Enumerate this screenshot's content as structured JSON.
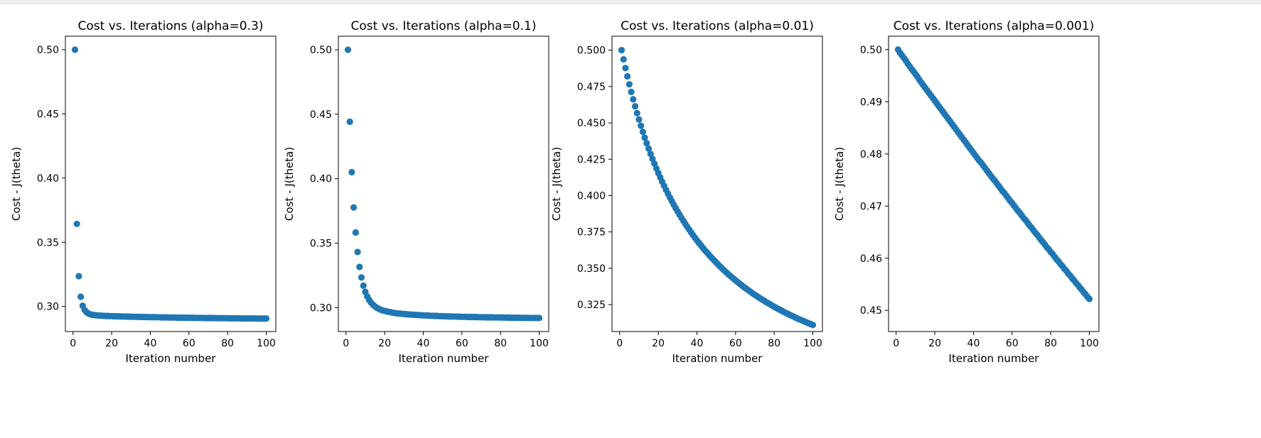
{
  "chart_data": [
    {
      "type": "scatter",
      "title": "Cost vs. Iterations (alpha=0.3)",
      "xlabel": "Iteration number",
      "ylabel": "Cost - J(theta)",
      "xlim": [
        -3.95,
        104.95
      ],
      "ylim": [
        0.2805,
        0.5105
      ],
      "xticks": [
        0,
        20,
        40,
        60,
        80,
        100
      ],
      "xtick_labels": [
        "0",
        "20",
        "40",
        "60",
        "80",
        "100"
      ],
      "yticks": [
        0.3,
        0.35,
        0.4,
        0.45,
        0.5
      ],
      "ytick_labels": [
        "0.30",
        "0.35",
        "0.40",
        "0.45",
        "0.50"
      ],
      "marker_color": "#1f77b4",
      "series": [
        {
          "x": [
            1,
            2,
            3,
            4,
            5,
            6,
            7,
            8,
            9,
            10,
            11,
            12,
            13,
            14,
            15,
            16,
            17,
            18,
            19,
            20,
            21,
            22,
            23,
            24,
            25,
            26,
            27,
            28,
            29,
            30,
            31,
            32,
            33,
            34,
            35,
            36,
            37,
            38,
            39,
            40,
            41,
            42,
            43,
            44,
            45,
            46,
            47,
            48,
            49,
            50,
            51,
            52,
            53,
            54,
            55,
            56,
            57,
            58,
            59,
            60,
            61,
            62,
            63,
            64,
            65,
            66,
            67,
            68,
            69,
            70,
            71,
            72,
            73,
            74,
            75,
            76,
            77,
            78,
            79,
            80,
            81,
            82,
            83,
            84,
            85,
            86,
            87,
            88,
            89,
            90,
            91,
            92,
            93,
            94,
            95,
            96,
            97,
            98,
            99,
            100
          ],
          "y": [
            0.5,
            0.3643,
            0.3236,
            0.3076,
            0.3006,
            0.2973,
            0.2955,
            0.2945,
            0.2939,
            0.2935,
            0.2933,
            0.2931,
            0.293,
            0.2929,
            0.2928,
            0.2927,
            0.2926,
            0.2926,
            0.2925,
            0.2925,
            0.2924,
            0.2924,
            0.2923,
            0.2923,
            0.2922,
            0.2922,
            0.2922,
            0.2921,
            0.2921,
            0.292,
            0.292,
            0.292,
            0.2919,
            0.2919,
            0.2919,
            0.2918,
            0.2918,
            0.2918,
            0.2917,
            0.2917,
            0.2917,
            0.2917,
            0.2916,
            0.2916,
            0.2916,
            0.2915,
            0.2915,
            0.2915,
            0.2915,
            0.2914,
            0.2914,
            0.2914,
            0.2914,
            0.2913,
            0.2913,
            0.2913,
            0.2913,
            0.2913,
            0.2912,
            0.2912,
            0.2912,
            0.2912,
            0.2911,
            0.2911,
            0.2911,
            0.2911,
            0.2911,
            0.291,
            0.291,
            0.291,
            0.291,
            0.291,
            0.291,
            0.2909,
            0.2909,
            0.2909,
            0.2909,
            0.2909,
            0.2909,
            0.2908,
            0.2908,
            0.2908,
            0.2908,
            0.2908,
            0.2908,
            0.2908,
            0.2907,
            0.2907,
            0.2907,
            0.2907,
            0.2907,
            0.2907,
            0.2907,
            0.2907,
            0.2906,
            0.2906,
            0.2906,
            0.2906,
            0.2906,
            0.2906
          ]
        }
      ]
    },
    {
      "type": "scatter",
      "title": "Cost vs. Iterations (alpha=0.1)",
      "xlabel": "Iteration number",
      "ylabel": "Cost - J(theta)",
      "xlim": [
        -3.95,
        104.95
      ],
      "ylim": [
        0.2815,
        0.5105
      ],
      "xticks": [
        0,
        20,
        40,
        60,
        80,
        100
      ],
      "xtick_labels": [
        "0",
        "20",
        "40",
        "60",
        "80",
        "100"
      ],
      "yticks": [
        0.3,
        0.35,
        0.4,
        0.45,
        0.5
      ],
      "ytick_labels": [
        "0.30",
        "0.35",
        "0.40",
        "0.45",
        "0.50"
      ],
      "marker_color": "#1f77b4",
      "series": [
        {
          "x": [
            1,
            2,
            3,
            4,
            5,
            6,
            7,
            8,
            9,
            10,
            11,
            12,
            13,
            14,
            15,
            16,
            17,
            18,
            19,
            20,
            21,
            22,
            23,
            24,
            25,
            26,
            27,
            28,
            29,
            30,
            31,
            32,
            33,
            34,
            35,
            36,
            37,
            38,
            39,
            40,
            41,
            42,
            43,
            44,
            45,
            46,
            47,
            48,
            49,
            50,
            51,
            52,
            53,
            54,
            55,
            56,
            57,
            58,
            59,
            60,
            61,
            62,
            63,
            64,
            65,
            66,
            67,
            68,
            69,
            70,
            71,
            72,
            73,
            74,
            75,
            76,
            77,
            78,
            79,
            80,
            81,
            82,
            83,
            84,
            85,
            86,
            87,
            88,
            89,
            90,
            91,
            92,
            93,
            94,
            95,
            96,
            97,
            98,
            99,
            100
          ],
          "y": [
            0.5,
            0.4442,
            0.4051,
            0.3777,
            0.3583,
            0.3432,
            0.3316,
            0.3234,
            0.3171,
            0.3123,
            0.3087,
            0.306,
            0.3039,
            0.3022,
            0.3009,
            0.2999,
            0.2991,
            0.2984,
            0.2979,
            0.2975,
            0.2971,
            0.2968,
            0.2965,
            0.2962,
            0.2959,
            0.2957,
            0.2955,
            0.2954,
            0.2952,
            0.2951,
            0.2949,
            0.2948,
            0.2947,
            0.2946,
            0.2945,
            0.2944,
            0.2943,
            0.2942,
            0.2941,
            0.294,
            0.294,
            0.2939,
            0.2938,
            0.2937,
            0.2937,
            0.2936,
            0.2936,
            0.2935,
            0.2934,
            0.2934,
            0.2933,
            0.2933,
            0.2932,
            0.2932,
            0.2931,
            0.2931,
            0.2931,
            0.293,
            0.293,
            0.2929,
            0.2929,
            0.2929,
            0.2928,
            0.2928,
            0.2928,
            0.2927,
            0.2927,
            0.2927,
            0.2926,
            0.2926,
            0.2926,
            0.2926,
            0.2925,
            0.2925,
            0.2925,
            0.2925,
            0.2924,
            0.2924,
            0.2924,
            0.2924,
            0.2923,
            0.2923,
            0.2923,
            0.2923,
            0.2922,
            0.2922,
            0.2922,
            0.2922,
            0.2922,
            0.2921,
            0.2921,
            0.2921,
            0.2921,
            0.2921,
            0.292,
            0.292,
            0.292,
            0.292,
            0.292,
            0.292
          ]
        }
      ]
    },
    {
      "type": "scatter",
      "title": "Cost vs. Iterations (alpha=0.01)",
      "xlabel": "Iteration number",
      "ylabel": "Cost - J(theta)",
      "xlim": [
        -3.95,
        104.95
      ],
      "ylim": [
        0.3065,
        0.5096
      ],
      "xticks": [
        0,
        20,
        40,
        60,
        80,
        100
      ],
      "xtick_labels": [
        "0",
        "20",
        "40",
        "60",
        "80",
        "100"
      ],
      "yticks": [
        0.325,
        0.35,
        0.375,
        0.4,
        0.425,
        0.45,
        0.475,
        0.5
      ],
      "ytick_labels": [
        "0.325",
        "0.350",
        "0.375",
        "0.400",
        "0.425",
        "0.450",
        "0.475",
        "0.500"
      ],
      "marker_color": "#1f77b4",
      "series": [
        {
          "x": [
            1,
            2,
            3,
            4,
            5,
            6,
            7,
            8,
            9,
            10,
            11,
            12,
            13,
            14,
            15,
            16,
            17,
            18,
            19,
            20,
            21,
            22,
            23,
            24,
            25,
            26,
            27,
            28,
            29,
            30,
            31,
            32,
            33,
            34,
            35,
            36,
            37,
            38,
            39,
            40,
            41,
            42,
            43,
            44,
            45,
            46,
            47,
            48,
            49,
            50,
            51,
            52,
            53,
            54,
            55,
            56,
            57,
            58,
            59,
            60,
            61,
            62,
            63,
            64,
            65,
            66,
            67,
            68,
            69,
            70,
            71,
            72,
            73,
            74,
            75,
            76,
            77,
            78,
            79,
            80,
            81,
            82,
            83,
            84,
            85,
            86,
            87,
            88,
            89,
            90,
            91,
            92,
            93,
            94,
            95,
            96,
            97,
            98,
            99,
            100
          ],
          "y": [
            0.5,
            0.4937,
            0.4877,
            0.482,
            0.4765,
            0.4713,
            0.4662,
            0.4614,
            0.4567,
            0.4523,
            0.448,
            0.4438,
            0.4398,
            0.436,
            0.4323,
            0.4287,
            0.4252,
            0.4219,
            0.4186,
            0.4155,
            0.4125,
            0.4095,
            0.4067,
            0.4039,
            0.4013,
            0.3987,
            0.3962,
            0.3937,
            0.3914,
            0.3891,
            0.3868,
            0.3847,
            0.3826,
            0.3805,
            0.3785,
            0.3766,
            0.3747,
            0.3728,
            0.371,
            0.3692,
            0.3675,
            0.3659,
            0.3642,
            0.3626,
            0.3611,
            0.3596,
            0.3581,
            0.3567,
            0.3553,
            0.3539,
            0.3525,
            0.3512,
            0.3499,
            0.3487,
            0.3474,
            0.3462,
            0.345,
            0.3439,
            0.3428,
            0.3416,
            0.3406,
            0.3395,
            0.3385,
            0.3374,
            0.3364,
            0.3355,
            0.3345,
            0.3336,
            0.3326,
            0.3317,
            0.3308,
            0.33,
            0.3291,
            0.3283,
            0.3275,
            0.3266,
            0.3259,
            0.3251,
            0.3243,
            0.3236,
            0.3228,
            0.3221,
            0.3214,
            0.3207,
            0.32,
            0.3193,
            0.3187,
            0.318,
            0.3174,
            0.3168,
            0.3161,
            0.3155,
            0.3149,
            0.3144,
            0.3138,
            0.3132,
            0.3126,
            0.3121,
            0.3116,
            0.311
          ]
        }
      ]
    },
    {
      "type": "scatter",
      "title": "Cost vs. Iterations (alpha=0.001)",
      "xlabel": "Iteration number",
      "ylabel": "Cost - J(theta)",
      "xlim": [
        -3.95,
        104.95
      ],
      "ylim": [
        0.44595,
        0.50257
      ],
      "xticks": [
        0,
        20,
        40,
        60,
        80,
        100
      ],
      "xtick_labels": [
        "0",
        "20",
        "40",
        "60",
        "80",
        "100"
      ],
      "yticks": [
        0.45,
        0.46,
        0.47,
        0.48,
        0.49,
        0.5
      ],
      "ytick_labels": [
        "0.45",
        "0.46",
        "0.47",
        "0.48",
        "0.49",
        "0.50"
      ],
      "marker_color": "#1f77b4",
      "series": [
        {
          "x": [
            1,
            2,
            3,
            4,
            5,
            6,
            7,
            8,
            9,
            10,
            11,
            12,
            13,
            14,
            15,
            16,
            17,
            18,
            19,
            20,
            21,
            22,
            23,
            24,
            25,
            26,
            27,
            28,
            29,
            30,
            31,
            32,
            33,
            34,
            35,
            36,
            37,
            38,
            39,
            40,
            41,
            42,
            43,
            44,
            45,
            46,
            47,
            48,
            49,
            50,
            51,
            52,
            53,
            54,
            55,
            56,
            57,
            58,
            59,
            60,
            61,
            62,
            63,
            64,
            65,
            66,
            67,
            68,
            69,
            70,
            71,
            72,
            73,
            74,
            75,
            76,
            77,
            78,
            79,
            80,
            81,
            82,
            83,
            84,
            85,
            86,
            87,
            88,
            89,
            90,
            91,
            92,
            93,
            94,
            95,
            96,
            97,
            98,
            99,
            100
          ],
          "y": [
            0.5,
            0.4994,
            0.4989,
            0.4984,
            0.4979,
            0.4973,
            0.4968,
            0.4963,
            0.4958,
            0.4953,
            0.4948,
            0.4942,
            0.4937,
            0.4932,
            0.4927,
            0.4922,
            0.4917,
            0.4912,
            0.4907,
            0.4902,
            0.4897,
            0.4892,
            0.4887,
            0.4882,
            0.4877,
            0.4872,
            0.4867,
            0.4862,
            0.4857,
            0.4852,
            0.4847,
            0.4842,
            0.4837,
            0.4832,
            0.4827,
            0.4822,
            0.4817,
            0.4812,
            0.4807,
            0.4802,
            0.4797,
            0.4792,
            0.4787,
            0.4783,
            0.4778,
            0.4773,
            0.4768,
            0.4763,
            0.4758,
            0.4753,
            0.4749,
            0.4744,
            0.4739,
            0.4734,
            0.4729,
            0.4725,
            0.472,
            0.4715,
            0.471,
            0.4706,
            0.4701,
            0.4696,
            0.4691,
            0.4687,
            0.4682,
            0.4677,
            0.4673,
            0.4668,
            0.4663,
            0.4659,
            0.4654,
            0.4649,
            0.4645,
            0.464,
            0.4635,
            0.4631,
            0.4626,
            0.4621,
            0.4617,
            0.4612,
            0.4608,
            0.4603,
            0.4598,
            0.4594,
            0.4589,
            0.4585,
            0.458,
            0.4576,
            0.4571,
            0.4567,
            0.4562,
            0.4558,
            0.4553,
            0.4549,
            0.4544,
            0.454,
            0.4535,
            0.4531,
            0.4526,
            0.4522
          ]
        }
      ]
    }
  ]
}
